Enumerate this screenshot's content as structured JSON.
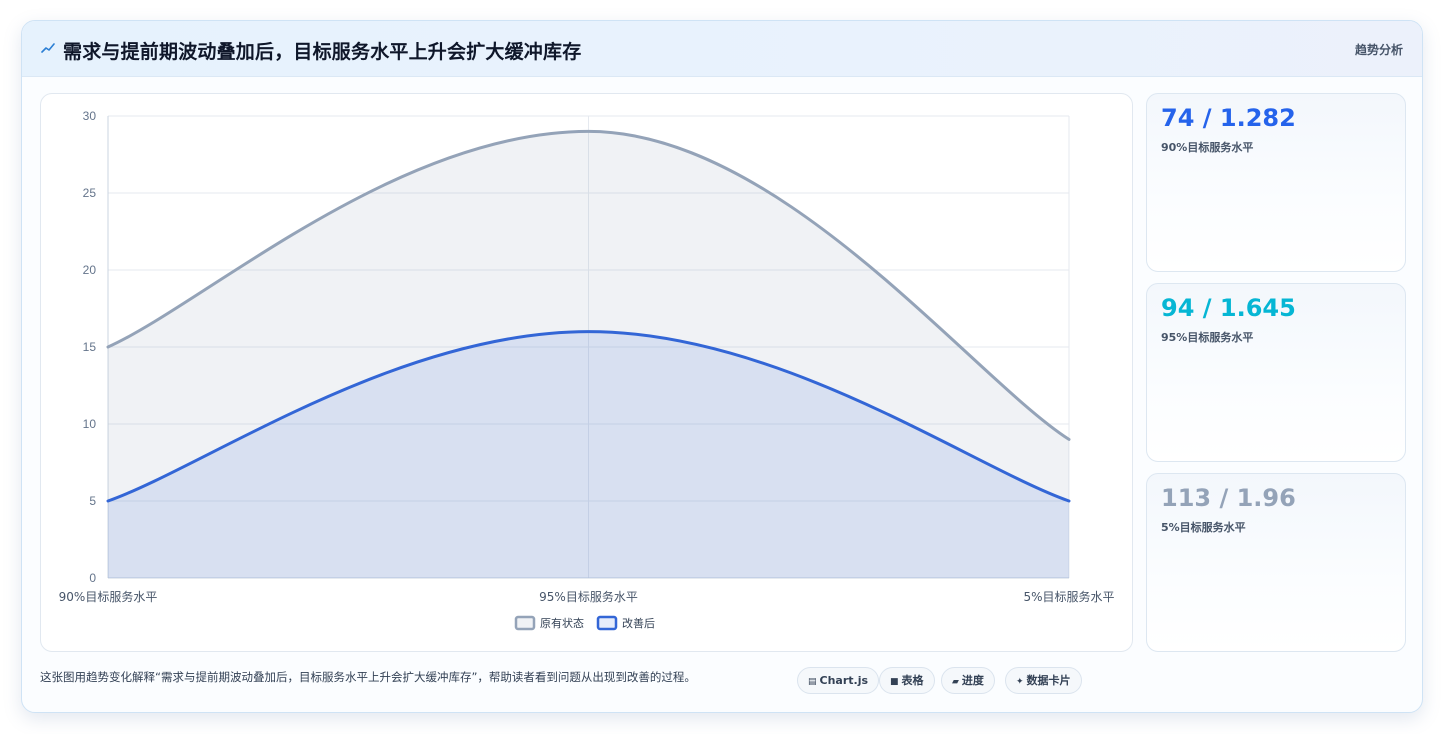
{
  "header": {
    "title": "需求与提前期波动叠加后，目标服务水平上升会扩大缓冲库存",
    "tag": "趋势分析",
    "title_icon": "trend-line-icon"
  },
  "chart_data": {
    "type": "area",
    "categories": [
      "90%目标服务水平",
      "95%目标服务水平",
      "5%目标服务水平"
    ],
    "series": [
      {
        "name": "原有状态",
        "values": [
          15,
          29,
          9
        ],
        "color": "#94a3b8",
        "fill": "rgba(148,163,184,0.14)"
      },
      {
        "name": "改善后",
        "values": [
          5,
          16,
          5
        ],
        "color": "#3366d6",
        "fill": "rgba(51,102,214,0.12)"
      }
    ],
    "ylim": [
      0,
      30
    ],
    "yticks": [
      0,
      5,
      10,
      15,
      20,
      25,
      30
    ],
    "grid": true,
    "legend_position": "bottom"
  },
  "stats": [
    {
      "value": "74 / 1.282",
      "label": "90%目标服务水平",
      "color": "#2563eb"
    },
    {
      "value": "94 / 1.645",
      "label": "95%目标服务水平",
      "color": "#06b6d4"
    },
    {
      "value": "113 / 1.96",
      "label": "5%目标服务水平",
      "color": "#94a3b8"
    }
  ],
  "footer": {
    "text": "这张图用趋势变化解释“需求与提前期波动叠加后，目标服务水平上升会扩大缓冲库存”，帮助读者看到问题从出现到改善的过程。",
    "pills": [
      {
        "icon": "▤",
        "label": "Chart.js"
      },
      {
        "icon": "■",
        "label": "表格"
      },
      {
        "icon": "▰",
        "label": "进度"
      },
      {
        "icon": "✦",
        "label": "数据卡片"
      }
    ]
  }
}
